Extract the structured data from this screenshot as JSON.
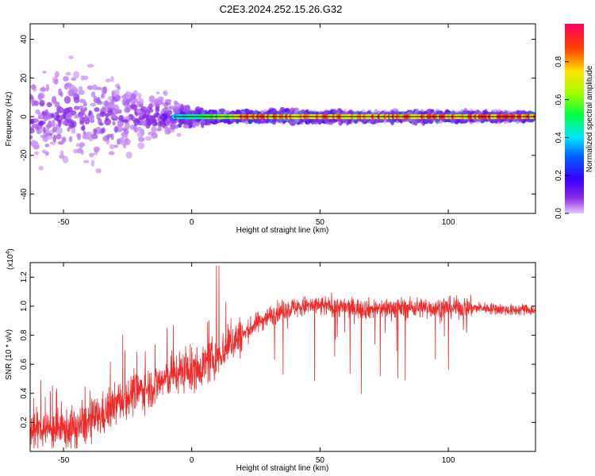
{
  "title": "C2E3.2024.252.15.26.G32",
  "chart_data": [
    {
      "type": "heatmap",
      "xlabel": "Height of straight line (km)",
      "ylabel": "Frequency (Hz)",
      "xlim": [
        -63,
        134
      ],
      "ylim": [
        -50,
        48
      ],
      "xticks": [
        -50,
        0,
        50,
        100
      ],
      "yticks": [
        -40,
        -20,
        0,
        20,
        40
      ],
      "colorbar": {
        "label": "Normalized spectral amplitude",
        "ticks": [
          "0.0",
          "0.2",
          "0.4",
          "0.6",
          "0.8"
        ],
        "range": [
          0,
          1
        ],
        "colors": [
          "#e6c8ff",
          "#8a2be2",
          "#3a00ff",
          "#0060ff",
          "#00e5ff",
          "#00ff40",
          "#a0ff00",
          "#ffe000",
          "#ff4000",
          "#ff0060"
        ]
      },
      "ridge": {
        "frequency_hz": 0,
        "x_start": -7,
        "x_end": 134,
        "line_color": "#000000"
      },
      "scatter_envelope": [
        {
          "x": -62,
          "spread": 14,
          "amp": 0.35
        },
        {
          "x": -50,
          "spread": 16,
          "amp": 0.35
        },
        {
          "x": -40,
          "spread": 16,
          "amp": 0.32
        },
        {
          "x": -30,
          "spread": 13,
          "amp": 0.33
        },
        {
          "x": -20,
          "spread": 10,
          "amp": 0.35
        },
        {
          "x": -10,
          "spread": 7,
          "amp": 0.4
        },
        {
          "x": 0,
          "spread": 3,
          "amp": 0.55
        },
        {
          "x": 10,
          "spread": 2,
          "amp": 0.7
        },
        {
          "x": 20,
          "spread": 1.5,
          "amp": 0.9
        },
        {
          "x": 40,
          "spread": 2,
          "amp": 0.9
        },
        {
          "x": 60,
          "spread": 1.5,
          "amp": 0.9
        },
        {
          "x": 80,
          "spread": 1.5,
          "amp": 0.9
        },
        {
          "x": 100,
          "spread": 1.5,
          "amp": 0.9
        },
        {
          "x": 134,
          "spread": 1.2,
          "amp": 0.95
        }
      ]
    },
    {
      "type": "line",
      "xlabel": "Height of straight line (km)",
      "ylabel": "SNR (10 * v/v)",
      "yscale_label": "(x10",
      "yscale_exp": "4",
      "xlim": [
        -63,
        134
      ],
      "ylim": [
        0.0,
        1.3
      ],
      "xticks": [
        -50,
        0,
        50,
        100
      ],
      "yticks": [
        0.2,
        0.4,
        0.6,
        0.8,
        1.0,
        1.2
      ],
      "series": [
        {
          "color": "#ee2a2a",
          "x": [
            -63,
            -55,
            -50,
            -45,
            -40,
            -35,
            -30,
            -25,
            -20,
            -15,
            -10,
            -5,
            0,
            5,
            10,
            15,
            20,
            25,
            30,
            35,
            40,
            45,
            50,
            55,
            60,
            70,
            80,
            90,
            100,
            110,
            120,
            125,
            130,
            134
          ],
          "y": [
            0.15,
            0.15,
            0.15,
            0.16,
            0.2,
            0.25,
            0.32,
            0.38,
            0.42,
            0.45,
            0.5,
            0.55,
            0.55,
            0.6,
            0.65,
            0.75,
            0.8,
            0.88,
            0.93,
            0.97,
            0.99,
            1.0,
            1.0,
            1.0,
            0.99,
            0.98,
            0.99,
            0.99,
            0.99,
            0.99,
            0.98,
            0.97,
            0.98,
            0.97
          ]
        }
      ]
    }
  ]
}
